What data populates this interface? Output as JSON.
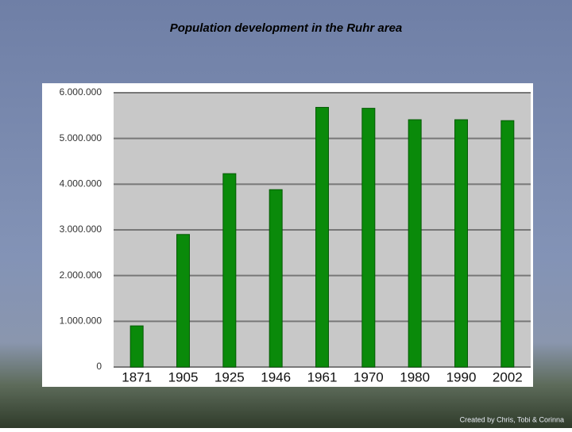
{
  "chart_data": {
    "type": "bar",
    "title": "Population development in the Ruhr area",
    "categories": [
      "1871",
      "1905",
      "1925",
      "1946",
      "1961",
      "1970",
      "1980",
      "1990",
      "2002"
    ],
    "values": [
      900000,
      2900000,
      4230000,
      3880000,
      5680000,
      5660000,
      5410000,
      5410000,
      5390000
    ],
    "color": "#0a8a0a",
    "ylim": [
      0,
      6000000
    ],
    "yticks": [
      0,
      {
        "value": 1000000,
        "label": "1.000.000"
      },
      {
        "value": 2000000,
        "label": "2.000.000"
      },
      {
        "value": 3000000,
        "label": "3.000.000"
      },
      {
        "value": 4000000,
        "label": "4.000.000"
      },
      {
        "value": 5000000,
        "label": "5.000.000"
      },
      {
        "value": 6000000,
        "label": "6.000.000"
      }
    ],
    "grid": true
  },
  "footer": "Created by Chris, Tobi & Corinna"
}
